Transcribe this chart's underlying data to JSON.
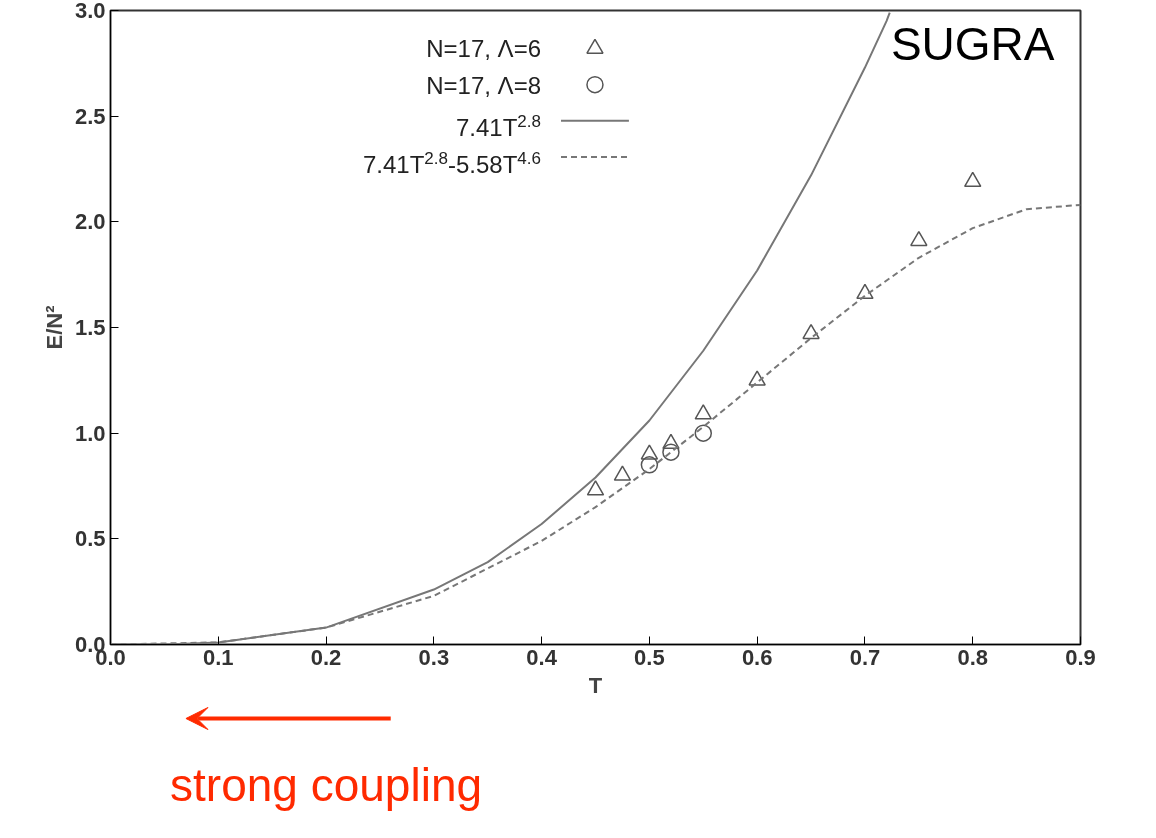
{
  "chart_data": {
    "type": "scatter",
    "xlabel": "T",
    "ylabel": "E/N²",
    "xlim": [
      0.0,
      0.9
    ],
    "ylim": [
      0.0,
      3.0
    ],
    "xticks": [
      {
        "value": 0.0,
        "label": "0.0"
      },
      0.1,
      0.2,
      0.3,
      0.4,
      0.5,
      0.6,
      0.7,
      0.8,
      0.9
    ],
    "yticks": [
      {
        "value": 0.0,
        "label": "0.0"
      },
      0.5,
      {
        "value": 1.0,
        "label": "1.0"
      },
      1.5,
      {
        "value": 2.0,
        "label": "2.0"
      },
      2.5,
      {
        "value": 3.0,
        "label": "3.0"
      }
    ],
    "grid": false,
    "legend": "top",
    "series": [
      {
        "name": "N=17, Λ=6",
        "marker": "triangle",
        "color": "#555555",
        "x": [
          0.45,
          0.475,
          0.5,
          0.52,
          0.55,
          0.6,
          0.65,
          0.7,
          0.75,
          0.8
        ],
        "values": [
          0.73,
          0.8,
          0.9,
          0.95,
          1.09,
          1.25,
          1.47,
          1.66,
          1.91,
          2.19
        ]
      },
      {
        "name": "N=17, Λ=8",
        "marker": "circle",
        "color": "#555555",
        "x": [
          0.5,
          0.52,
          0.55
        ],
        "values": [
          0.85,
          0.91,
          1.0
        ]
      },
      {
        "name": "7.41T$^{2.8}$",
        "type": "line",
        "line_style": "solid",
        "color": "#777777",
        "x": [
          0.0,
          0.05,
          0.1,
          0.2,
          0.3,
          0.35,
          0.4,
          0.45,
          0.5,
          0.55,
          0.6,
          0.65,
          0.7,
          0.72,
          0.723
        ],
        "values": [
          0.0,
          0.0,
          0.01,
          0.08,
          0.26,
          0.39,
          0.57,
          0.79,
          1.06,
          1.39,
          1.77,
          2.22,
          2.73,
          2.95,
          2.99
        ]
      },
      {
        "name": "7.41T$^{2.8}$-5.58T$^{4.6}$",
        "type": "line",
        "line_style": "dashed",
        "color": "#777777",
        "x": [
          0.0,
          0.1,
          0.2,
          0.3,
          0.4,
          0.45,
          0.5,
          0.55,
          0.6,
          0.65,
          0.7,
          0.75,
          0.8,
          0.85,
          0.9
        ],
        "values": [
          0.0,
          0.01,
          0.08,
          0.23,
          0.49,
          0.65,
          0.83,
          1.03,
          1.24,
          1.45,
          1.65,
          1.83,
          1.97,
          2.06,
          2.08
        ]
      }
    ],
    "annotations": [
      "SUGRA",
      "strong coupling"
    ]
  }
}
